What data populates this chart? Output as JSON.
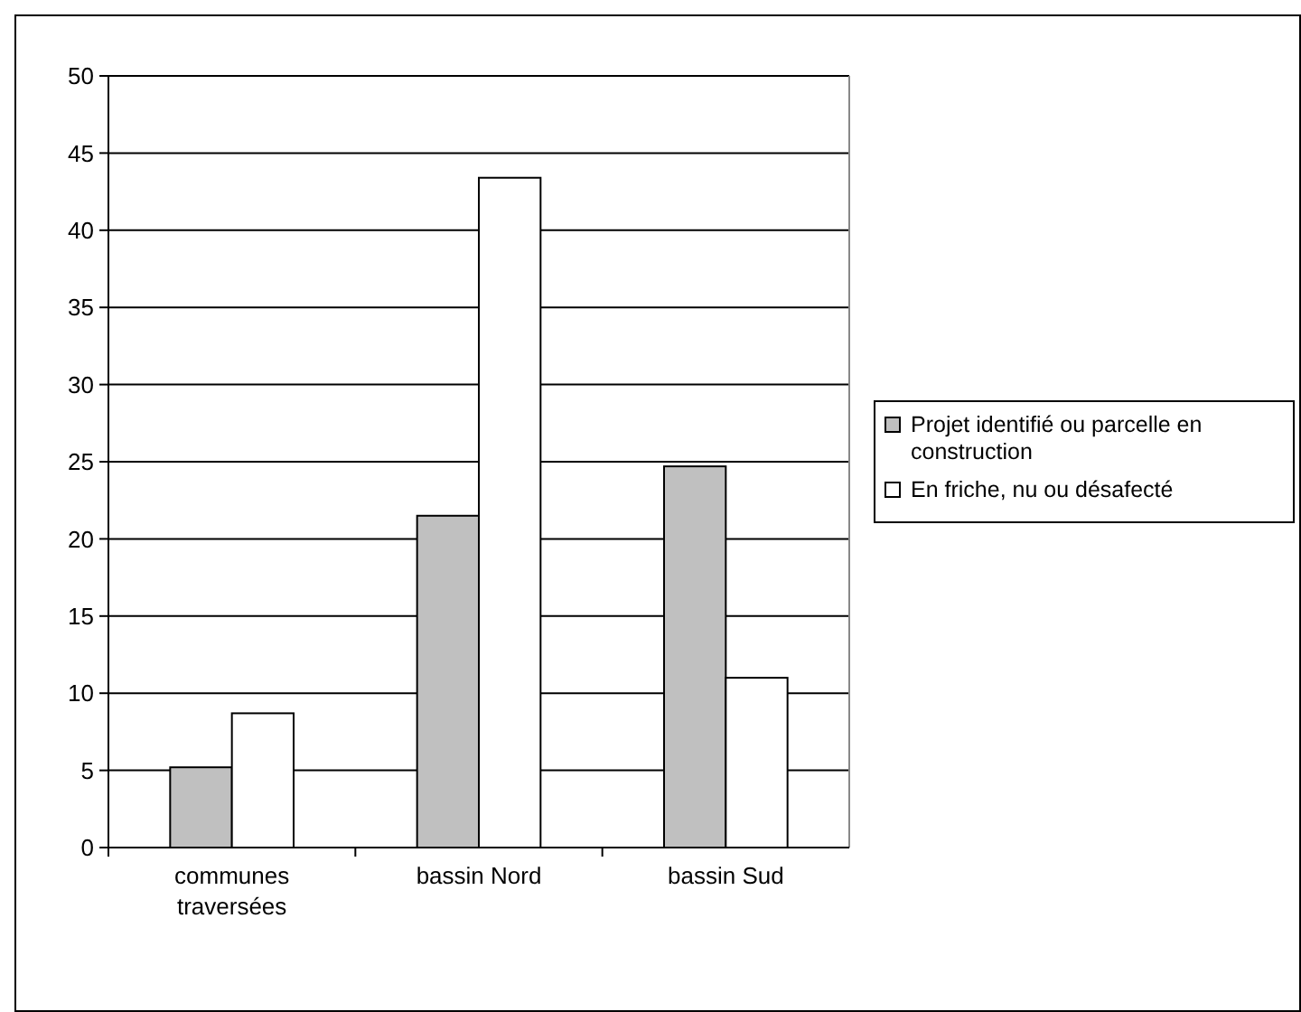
{
  "chart_data": {
    "type": "bar",
    "categories": [
      "communes traversées",
      "bassin Nord",
      "bassin Sud"
    ],
    "series": [
      {
        "name": "Projet identifié ou parcelle en construction",
        "color": "#c0c0c0",
        "values": [
          5.2,
          21.5,
          24.7
        ]
      },
      {
        "name": "En friche, nu ou désafecté",
        "color": "#ffffff",
        "values": [
          8.7,
          43.4,
          11.0
        ]
      }
    ],
    "ylim": [
      0,
      50
    ],
    "yticks": [
      0,
      5,
      10,
      15,
      20,
      25,
      30,
      35,
      40,
      45,
      50
    ],
    "grid": "y",
    "legend": "right"
  }
}
